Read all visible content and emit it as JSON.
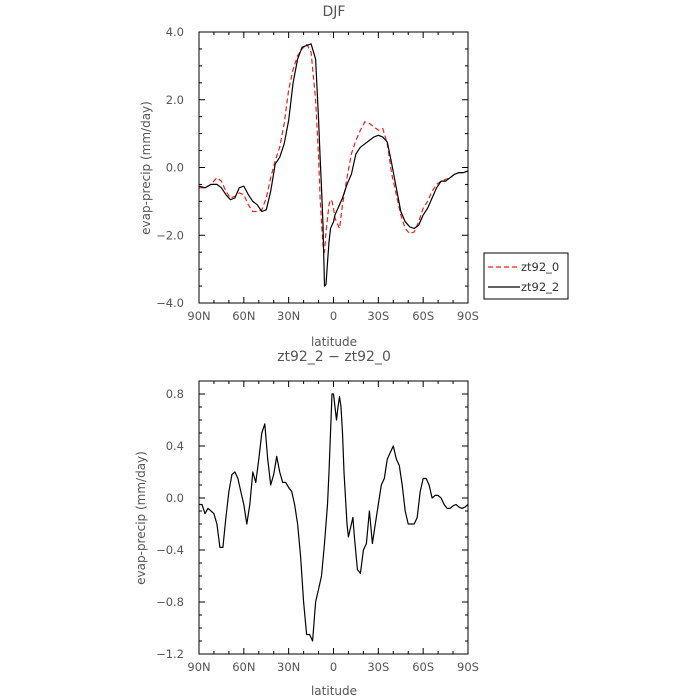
{
  "chart_data": [
    {
      "type": "line",
      "title": "DJF",
      "xlabel": "latitude",
      "ylabel": "evap-precip (mm/day)",
      "xlim": [
        90,
        -90
      ],
      "ylim": [
        -4.0,
        4.0
      ],
      "xticks": [
        90,
        60,
        30,
        0,
        -30,
        -60,
        -90
      ],
      "xticklabels": [
        "90N",
        "60N",
        "30N",
        "0",
        "30S",
        "60S",
        "90S"
      ],
      "yticks": [
        -4.0,
        -2.0,
        0.0,
        2.0,
        4.0
      ],
      "yticklabels": [
        "−4.0",
        "−2.0",
        "0.0",
        "2.0",
        "4.0"
      ],
      "legend_position": "outside-right",
      "series": [
        {
          "name": "zt92_0",
          "color": "#e8201e",
          "dash": "dashed",
          "x": [
            90,
            86,
            82,
            78,
            75,
            72,
            69,
            66,
            63,
            60,
            57,
            54,
            51,
            48,
            45,
            42,
            39,
            36,
            33,
            30,
            27,
            24,
            21,
            18,
            15,
            12,
            10,
            9,
            8,
            7,
            6,
            5,
            4,
            3,
            2,
            1,
            0,
            -1,
            -2,
            -3,
            -4,
            -6,
            -9,
            -12,
            -15,
            -18,
            -21,
            -24,
            -27,
            -30,
            -33,
            -36,
            -39,
            -42,
            -45,
            -48,
            -51,
            -54,
            -57,
            -60,
            -63,
            -66,
            -69,
            -72,
            -75,
            -78,
            -81,
            -84,
            -87,
            -90
          ],
          "y": [
            -0.6,
            -0.6,
            -0.5,
            -0.3,
            -0.4,
            -0.7,
            -0.9,
            -0.85,
            -0.75,
            -0.8,
            -1.1,
            -1.3,
            -1.3,
            -1.25,
            -0.9,
            -0.3,
            0.2,
            0.6,
            1.3,
            2.3,
            2.9,
            3.3,
            3.5,
            3.65,
            3.4,
            2.0,
            0.3,
            -0.9,
            -1.6,
            -2.3,
            -2.5,
            -1.9,
            -1.5,
            -1.1,
            -0.95,
            -1.0,
            -1.2,
            -1.5,
            -1.6,
            -1.7,
            -1.8,
            -1.1,
            -0.3,
            0.4,
            0.8,
            1.1,
            1.35,
            1.3,
            1.2,
            1.1,
            1.15,
            0.7,
            -0.2,
            -0.8,
            -1.4,
            -1.8,
            -1.95,
            -1.9,
            -1.6,
            -1.2,
            -1.0,
            -0.7,
            -0.5,
            -0.4,
            -0.35,
            -0.3,
            -0.2,
            -0.15,
            -0.15,
            -0.1
          ]
        },
        {
          "name": "zt92_2",
          "color": "#000000",
          "dash": "solid",
          "x": [
            90,
            86,
            82,
            78,
            75,
            72,
            69,
            66,
            63,
            60,
            57,
            54,
            51,
            48,
            45,
            42,
            39,
            36,
            33,
            30,
            27,
            24,
            21,
            18,
            15,
            12,
            10,
            9,
            8,
            7,
            6,
            5,
            4,
            3,
            2,
            1,
            0,
            -1,
            -2,
            -3,
            -4,
            -6,
            -9,
            -12,
            -15,
            -18,
            -21,
            -24,
            -27,
            -30,
            -33,
            -36,
            -39,
            -42,
            -45,
            -48,
            -51,
            -54,
            -57,
            -60,
            -63,
            -66,
            -69,
            -72,
            -75,
            -78,
            -81,
            -84,
            -87,
            -90
          ],
          "y": [
            -0.55,
            -0.6,
            -0.5,
            -0.5,
            -0.6,
            -0.8,
            -0.95,
            -0.9,
            -0.6,
            -0.55,
            -0.8,
            -1.0,
            -1.1,
            -1.3,
            -1.25,
            -0.7,
            0.1,
            0.3,
            0.7,
            1.4,
            2.5,
            3.2,
            3.55,
            3.6,
            3.65,
            3.2,
            1.4,
            0.3,
            -0.6,
            -1.7,
            -3.5,
            -3.45,
            -2.8,
            -2.2,
            -1.8,
            -1.7,
            -1.6,
            -1.4,
            -1.3,
            -1.2,
            -1.1,
            -0.9,
            -0.5,
            -0.2,
            0.4,
            0.6,
            0.7,
            0.8,
            0.9,
            0.95,
            0.9,
            0.75,
            0.1,
            -0.6,
            -1.3,
            -1.6,
            -1.75,
            -1.8,
            -1.7,
            -1.4,
            -1.2,
            -0.9,
            -0.6,
            -0.4,
            -0.4,
            -0.3,
            -0.2,
            -0.15,
            -0.15,
            -0.1
          ]
        }
      ]
    },
    {
      "type": "line",
      "title": "zt92_2 − zt92_0",
      "xlabel": "latitude",
      "ylabel": "evap-precip (mm/day)",
      "xlim": [
        90,
        -90
      ],
      "ylim": [
        -1.2,
        0.9
      ],
      "xticks": [
        90,
        60,
        30,
        0,
        -30,
        -60,
        -90
      ],
      "xticklabels": [
        "90N",
        "60N",
        "30N",
        "0",
        "30S",
        "60S",
        "90S"
      ],
      "yticks": [
        -1.2,
        -0.8,
        -0.4,
        0.0,
        0.4,
        0.8
      ],
      "yticklabels": [
        "−1.2",
        "−0.8",
        "−0.4",
        "0.0",
        "0.4",
        "0.8"
      ],
      "series": [
        {
          "color": "#000000",
          "dash": "solid",
          "x": [
            90,
            88,
            86,
            84,
            82,
            80,
            78,
            76,
            74,
            72,
            70,
            68,
            66,
            64,
            62,
            60,
            58,
            56,
            54,
            52,
            50,
            48,
            46,
            44,
            42,
            40,
            38,
            36,
            34,
            32,
            30,
            28,
            26,
            24,
            22,
            20,
            18,
            16,
            14,
            12,
            10,
            8,
            6,
            4,
            3,
            2,
            1,
            0,
            -1,
            -2,
            -3,
            -4,
            -5,
            -6,
            -7,
            -8,
            -9,
            -10,
            -11,
            -12,
            -13,
            -14,
            -16,
            -18,
            -20,
            -22,
            -24,
            -26,
            -28,
            -30,
            -32,
            -34,
            -36,
            -38,
            -40,
            -42,
            -44,
            -46,
            -48,
            -50,
            -52,
            -54,
            -56,
            -58,
            -60,
            -62,
            -64,
            -66,
            -68,
            -70,
            -72,
            -74,
            -76,
            -78,
            -80,
            -82,
            -84,
            -86,
            -88,
            -90
          ],
          "y": [
            -0.05,
            -0.05,
            -0.12,
            -0.08,
            -0.1,
            -0.12,
            -0.2,
            -0.38,
            -0.38,
            -0.15,
            0.05,
            0.18,
            0.2,
            0.15,
            0.05,
            -0.05,
            -0.2,
            -0.05,
            0.2,
            0.12,
            0.3,
            0.5,
            0.57,
            0.3,
            0.1,
            0.18,
            0.32,
            0.2,
            0.12,
            0.12,
            0.08,
            0.05,
            -0.05,
            -0.2,
            -0.45,
            -0.8,
            -1.05,
            -1.05,
            -1.1,
            -0.8,
            -0.7,
            -0.6,
            -0.35,
            -0.05,
            0.2,
            0.5,
            0.8,
            0.8,
            0.7,
            0.6,
            0.7,
            0.78,
            0.7,
            0.5,
            0.2,
            0.0,
            -0.2,
            -0.3,
            -0.25,
            -0.2,
            -0.15,
            -0.3,
            -0.55,
            -0.58,
            -0.4,
            -0.35,
            -0.1,
            -0.35,
            -0.2,
            -0.05,
            0.1,
            0.15,
            0.3,
            0.35,
            0.4,
            0.3,
            0.25,
            0.1,
            -0.1,
            -0.2,
            -0.2,
            -0.2,
            -0.15,
            0.05,
            0.15,
            0.15,
            0.1,
            0.0,
            0.02,
            0.02,
            0.0,
            -0.05,
            -0.08,
            -0.08,
            -0.06,
            -0.05,
            -0.07,
            -0.08,
            -0.07,
            -0.05
          ]
        }
      ]
    }
  ]
}
